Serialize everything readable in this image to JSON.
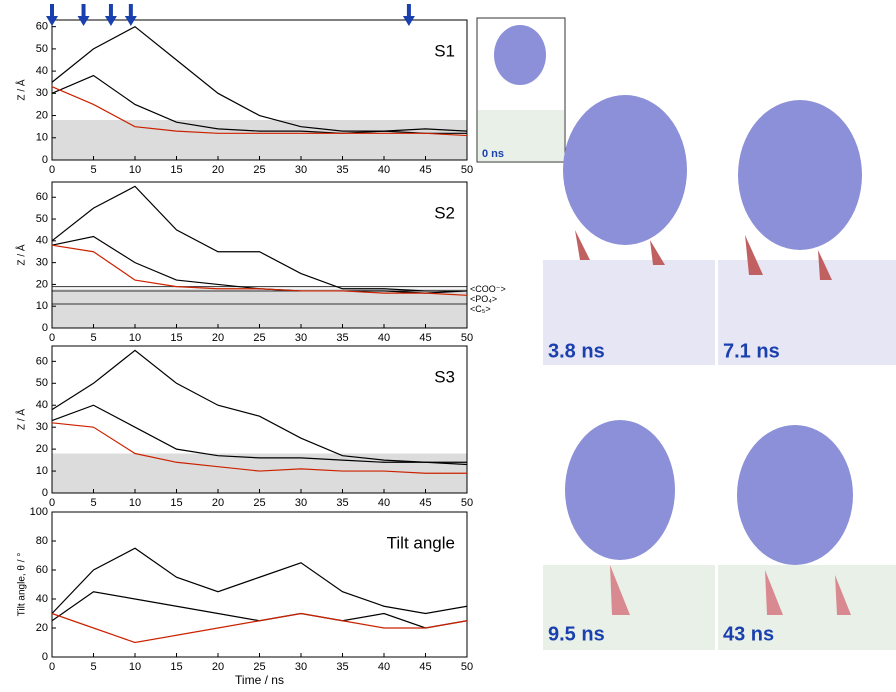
{
  "chart_data": [
    {
      "type": "line",
      "label": "S1",
      "ylabel": "Z / Å",
      "xlim": [
        0,
        50
      ],
      "xticks": [
        0,
        5,
        10,
        15,
        20,
        25,
        30,
        35,
        40,
        45,
        50
      ],
      "ylim": [
        0,
        63
      ],
      "yticks": [
        0,
        10,
        20,
        30,
        40,
        50,
        60
      ],
      "shade_ylim": [
        0,
        18
      ],
      "x": [
        0,
        5,
        10,
        15,
        20,
        25,
        30,
        35,
        40,
        45,
        50
      ],
      "series": [
        {
          "color": "#000000",
          "values": [
            35,
            50,
            60,
            45,
            30,
            20,
            15,
            13,
            13,
            14,
            13
          ]
        },
        {
          "color": "#000000",
          "values": [
            30,
            38,
            25,
            17,
            14,
            13,
            13,
            12,
            13,
            12,
            12
          ]
        },
        {
          "color": "#cc2200",
          "values": [
            33,
            25,
            15,
            13,
            12,
            12,
            12,
            12,
            12,
            12,
            11
          ]
        }
      ],
      "arrows_x": [
        0,
        3.8,
        7.1,
        9.5,
        43
      ]
    },
    {
      "type": "line",
      "label": "S2",
      "ylabel": "Z / Å",
      "xlim": [
        0,
        50
      ],
      "xticks": [
        0,
        5,
        10,
        15,
        20,
        25,
        30,
        35,
        40,
        45,
        50
      ],
      "ylim": [
        0,
        67
      ],
      "yticks": [
        0,
        10,
        20,
        30,
        40,
        50,
        60
      ],
      "shade_ylim": [
        0,
        18
      ],
      "x": [
        0,
        5,
        10,
        15,
        20,
        25,
        30,
        35,
        40,
        45,
        50
      ],
      "series": [
        {
          "color": "#000000",
          "values": [
            40,
            55,
            65,
            45,
            35,
            35,
            25,
            18,
            18,
            17,
            17
          ]
        },
        {
          "color": "#000000",
          "values": [
            38,
            42,
            30,
            22,
            20,
            18,
            17,
            17,
            17,
            16,
            17
          ]
        },
        {
          "color": "#cc2200",
          "values": [
            38,
            35,
            22,
            19,
            18,
            18,
            17,
            17,
            16,
            16,
            15
          ]
        }
      ],
      "reference_lines": [
        {
          "label": "<COO⁻>",
          "value": 19
        },
        {
          "label": "<PO₄>",
          "value": 17
        },
        {
          "label": "<C₅>",
          "value": 11
        }
      ]
    },
    {
      "type": "line",
      "label": "S3",
      "ylabel": "Z / Å",
      "xlim": [
        0,
        50
      ],
      "xticks": [
        0,
        5,
        10,
        15,
        20,
        25,
        30,
        35,
        40,
        45,
        50
      ],
      "ylim": [
        0,
        67
      ],
      "yticks": [
        0,
        10,
        20,
        30,
        40,
        50,
        60
      ],
      "shade_ylim": [
        0,
        18
      ],
      "x": [
        0,
        5,
        10,
        15,
        20,
        25,
        30,
        35,
        40,
        45,
        50
      ],
      "series": [
        {
          "color": "#000000",
          "values": [
            38,
            50,
            65,
            50,
            40,
            35,
            25,
            17,
            15,
            14,
            13
          ]
        },
        {
          "color": "#000000",
          "values": [
            33,
            40,
            30,
            20,
            17,
            16,
            16,
            15,
            14,
            14,
            14
          ]
        },
        {
          "color": "#cc2200",
          "values": [
            32,
            30,
            18,
            14,
            12,
            10,
            11,
            10,
            10,
            9,
            9
          ]
        }
      ]
    },
    {
      "type": "line",
      "label": "Tilt angle",
      "ylabel": "Tilt angle, θ / °",
      "xlabel": "Time  / ns",
      "xlim": [
        0,
        50
      ],
      "xticks": [
        0,
        5,
        10,
        15,
        20,
        25,
        30,
        35,
        40,
        45,
        50
      ],
      "ylim": [
        0,
        100
      ],
      "yticks": [
        0,
        20,
        40,
        60,
        80,
        100
      ],
      "x": [
        0,
        5,
        10,
        15,
        20,
        25,
        30,
        35,
        40,
        45,
        50
      ],
      "series": [
        {
          "color": "#000000",
          "values": [
            30,
            60,
            75,
            55,
            45,
            55,
            65,
            45,
            35,
            30,
            35
          ]
        },
        {
          "color": "#000000",
          "values": [
            25,
            45,
            40,
            35,
            30,
            25,
            30,
            25,
            30,
            20,
            25
          ]
        },
        {
          "color": "#cc2200",
          "values": [
            30,
            20,
            10,
            15,
            20,
            25,
            30,
            25,
            20,
            20,
            25
          ]
        }
      ]
    }
  ],
  "snapshots": [
    "0 ns",
    "3.8 ns",
    "7.1 ns",
    "9.5 ns",
    "43 ns"
  ]
}
